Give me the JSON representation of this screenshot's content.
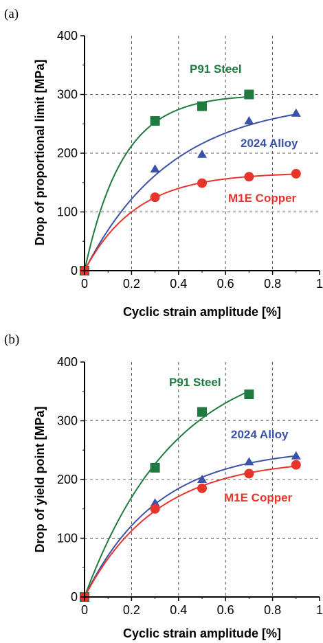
{
  "chart_data": [
    {
      "type": "scatter",
      "panel_label": "(a)",
      "xlabel": "Cyclic strain amplitude [%]",
      "ylabel": "Drop of proportional limit [MPa]",
      "xlim": [
        0,
        1
      ],
      "ylim": [
        0,
        400
      ],
      "xticks": [
        "0",
        "0.2",
        "0.4",
        "0.6",
        "0.8",
        "1"
      ],
      "yticks": [
        "0",
        "100",
        "200",
        "300",
        "400"
      ],
      "grid": true,
      "series": [
        {
          "name": "P91 Steel",
          "color": "#1e7a3e",
          "marker": "square",
          "x": [
            0,
            0.3,
            0.5,
            0.7
          ],
          "y": [
            0,
            255,
            280,
            300
          ]
        },
        {
          "name": "2024 Alloy",
          "color": "#3a52a8",
          "marker": "triangle",
          "x": [
            0,
            0.3,
            0.5,
            0.7,
            0.9
          ],
          "y": [
            0,
            173,
            198,
            255,
            268
          ]
        },
        {
          "name": "M1E Copper",
          "color": "#e8352b",
          "marker": "circle",
          "x": [
            0,
            0.3,
            0.5,
            0.7,
            0.9
          ],
          "y": [
            0,
            125,
            149,
            160,
            165
          ]
        }
      ]
    },
    {
      "type": "scatter",
      "panel_label": "(b)",
      "xlabel": "Cyclic strain amplitude [%]",
      "ylabel": "Drop of yield point [MPa]",
      "xlim": [
        0,
        1
      ],
      "ylim": [
        0,
        400
      ],
      "xticks": [
        "0",
        "0.2",
        "0.4",
        "0.6",
        "0.8",
        "1"
      ],
      "yticks": [
        "0",
        "100",
        "200",
        "300",
        "400"
      ],
      "grid": true,
      "series": [
        {
          "name": "P91 Steel",
          "color": "#1e7a3e",
          "marker": "square",
          "x": [
            0,
            0.3,
            0.5,
            0.7
          ],
          "y": [
            0,
            220,
            315,
            345
          ]
        },
        {
          "name": "2024 Alloy",
          "color": "#3a52a8",
          "marker": "triangle",
          "x": [
            0,
            0.3,
            0.5,
            0.7,
            0.9
          ],
          "y": [
            0,
            160,
            200,
            230,
            240
          ]
        },
        {
          "name": "M1E Copper",
          "color": "#e8352b",
          "marker": "circle",
          "x": [
            0,
            0.3,
            0.5,
            0.7,
            0.9
          ],
          "y": [
            0,
            150,
            185,
            210,
            225
          ]
        }
      ]
    }
  ]
}
